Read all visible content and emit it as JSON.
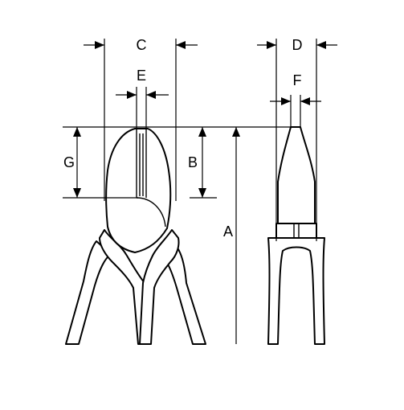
{
  "dimension_labels": {
    "a": "A",
    "b": "B",
    "c": "C",
    "d": "D",
    "e": "E",
    "f": "F",
    "g": "G"
  },
  "colors": {
    "line": "#000000",
    "background": "#ffffff"
  }
}
